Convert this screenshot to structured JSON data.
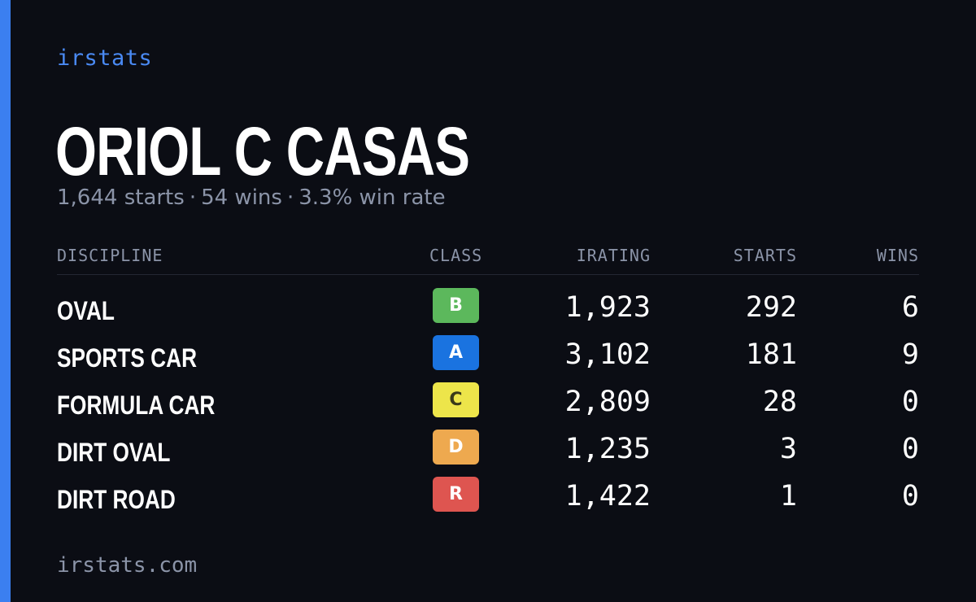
{
  "brand": "irstats",
  "driver": {
    "name": "ORIOL C CASAS",
    "summary": {
      "starts": "1,644 starts",
      "wins": "54 wins",
      "win_rate": "3.3% win rate",
      "separator": "·"
    }
  },
  "table": {
    "headers": {
      "discipline": "DISCIPLINE",
      "class": "CLASS",
      "irating": "IRATING",
      "starts": "STARTS",
      "wins": "WINS"
    },
    "rows": [
      {
        "discipline": "OVAL",
        "class": "B",
        "class_color": "#5cb85c",
        "class_text_color": "#ffffff",
        "irating": "1,923",
        "starts": "292",
        "wins": "6"
      },
      {
        "discipline": "SPORTS CAR",
        "class": "A",
        "class_color": "#1a73e0",
        "class_text_color": "#ffffff",
        "irating": "3,102",
        "starts": "181",
        "wins": "9"
      },
      {
        "discipline": "FORMULA CAR",
        "class": "C",
        "class_color": "#ede54a",
        "class_text_color": "#3a3a1a",
        "irating": "2,809",
        "starts": "28",
        "wins": "0"
      },
      {
        "discipline": "DIRT OVAL",
        "class": "D",
        "class_color": "#eea94f",
        "class_text_color": "#ffffff",
        "irating": "1,235",
        "starts": "3",
        "wins": "0"
      },
      {
        "discipline": "DIRT ROAD",
        "class": "R",
        "class_color": "#de5550",
        "class_text_color": "#ffffff",
        "irating": "1,422",
        "starts": "1",
        "wins": "0"
      }
    ]
  },
  "footer": "irstats.com",
  "colors": {
    "background": "#0b0d14",
    "accent": "#3b7ff0",
    "muted": "#8b94a8"
  }
}
